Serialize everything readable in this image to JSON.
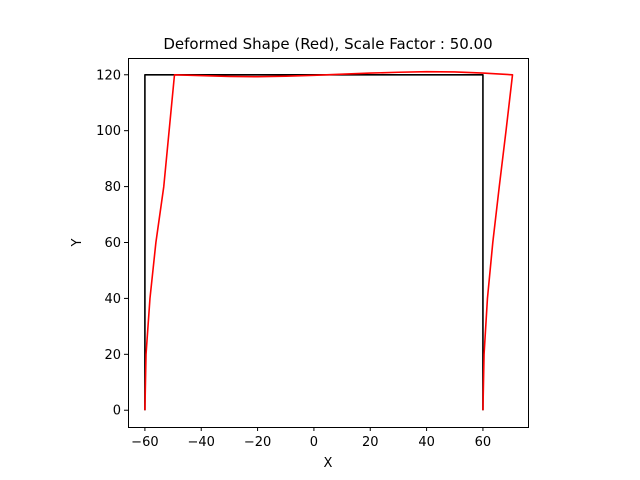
{
  "chart_data": {
    "type": "line",
    "title": "Deformed Shape (Red), Scale Factor : 50.00",
    "xlabel": "X",
    "ylabel": "Y",
    "xlim": [
      -66,
      76
    ],
    "ylim": [
      -6,
      126
    ],
    "xticks": [
      -60,
      -40,
      -20,
      0,
      20,
      40,
      60
    ],
    "yticks": [
      0,
      20,
      40,
      60,
      80,
      100,
      120
    ],
    "xtick_labels": [
      "−60",
      "−40",
      "−20",
      "0",
      "20",
      "40",
      "60"
    ],
    "ytick_labels": [
      "0",
      "20",
      "40",
      "60",
      "80",
      "100",
      "120"
    ],
    "grid": false,
    "legend": "none",
    "series": [
      {
        "color": "#000000",
        "x": [
          -60,
          -60,
          60,
          60
        ],
        "y": [
          0,
          120,
          120,
          0
        ]
      },
      {
        "color": "#ff0000",
        "x": [
          -60,
          -59.6,
          -58.2,
          -56.1,
          -53.3,
          -49.5,
          -30,
          -20,
          -10,
          0,
          10,
          20,
          30,
          40,
          50,
          60,
          70.5,
          68.2,
          65.8,
          63.5,
          61.6,
          60.4,
          60
        ],
        "y": [
          0,
          20,
          40,
          60,
          80,
          120,
          119.4,
          119.3,
          119.5,
          119.8,
          120.2,
          120.6,
          120.9,
          121.1,
          121.0,
          120.6,
          120,
          100,
          80,
          60,
          40,
          20,
          0
        ]
      }
    ]
  }
}
